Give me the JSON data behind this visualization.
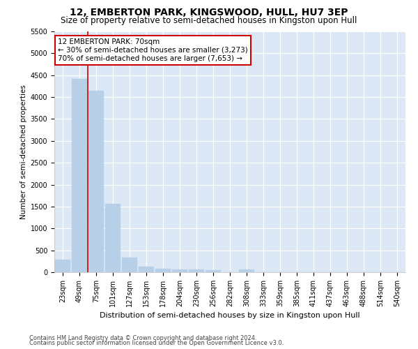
{
  "title": "12, EMBERTON PARK, KINGSWOOD, HULL, HU7 3EP",
  "subtitle": "Size of property relative to semi-detached houses in Kingston upon Hull",
  "xlabel": "Distribution of semi-detached houses by size in Kingston upon Hull",
  "ylabel": "Number of semi-detached properties",
  "footer1": "Contains HM Land Registry data © Crown copyright and database right 2024.",
  "footer2": "Contains public sector information licensed under the Open Government Licence v3.0.",
  "categories": [
    "23sqm",
    "49sqm",
    "75sqm",
    "101sqm",
    "127sqm",
    "153sqm",
    "178sqm",
    "204sqm",
    "230sqm",
    "256sqm",
    "282sqm",
    "308sqm",
    "333sqm",
    "359sqm",
    "385sqm",
    "411sqm",
    "437sqm",
    "463sqm",
    "488sqm",
    "514sqm",
    "540sqm"
  ],
  "values": [
    280,
    4420,
    4150,
    1560,
    330,
    130,
    75,
    65,
    60,
    55,
    0,
    60,
    0,
    0,
    0,
    0,
    0,
    0,
    0,
    0,
    0
  ],
  "bar_color": "#b8cfe8",
  "bar_edge_color": "#b8cfe8",
  "annotation_text_line1": "12 EMBERTON PARK: 70sqm",
  "annotation_text_line2": "← 30% of semi-detached houses are smaller (3,273)",
  "annotation_text_line3": "70% of semi-detached houses are larger (7,653) →",
  "box_facecolor": "#ffffff",
  "box_edgecolor": "#cc0000",
  "vline_color": "#cc0000",
  "vline_x": 1.5,
  "ylim": [
    0,
    5500
  ],
  "yticks": [
    0,
    500,
    1000,
    1500,
    2000,
    2500,
    3000,
    3500,
    4000,
    4500,
    5000,
    5500
  ],
  "bg_color": "#dce8f5",
  "fig_bg_color": "#ffffff",
  "title_fontsize": 10,
  "subtitle_fontsize": 8.5,
  "xlabel_fontsize": 8,
  "ylabel_fontsize": 7.5,
  "tick_fontsize": 7,
  "annotation_fontsize": 7.5,
  "footer_fontsize": 6
}
